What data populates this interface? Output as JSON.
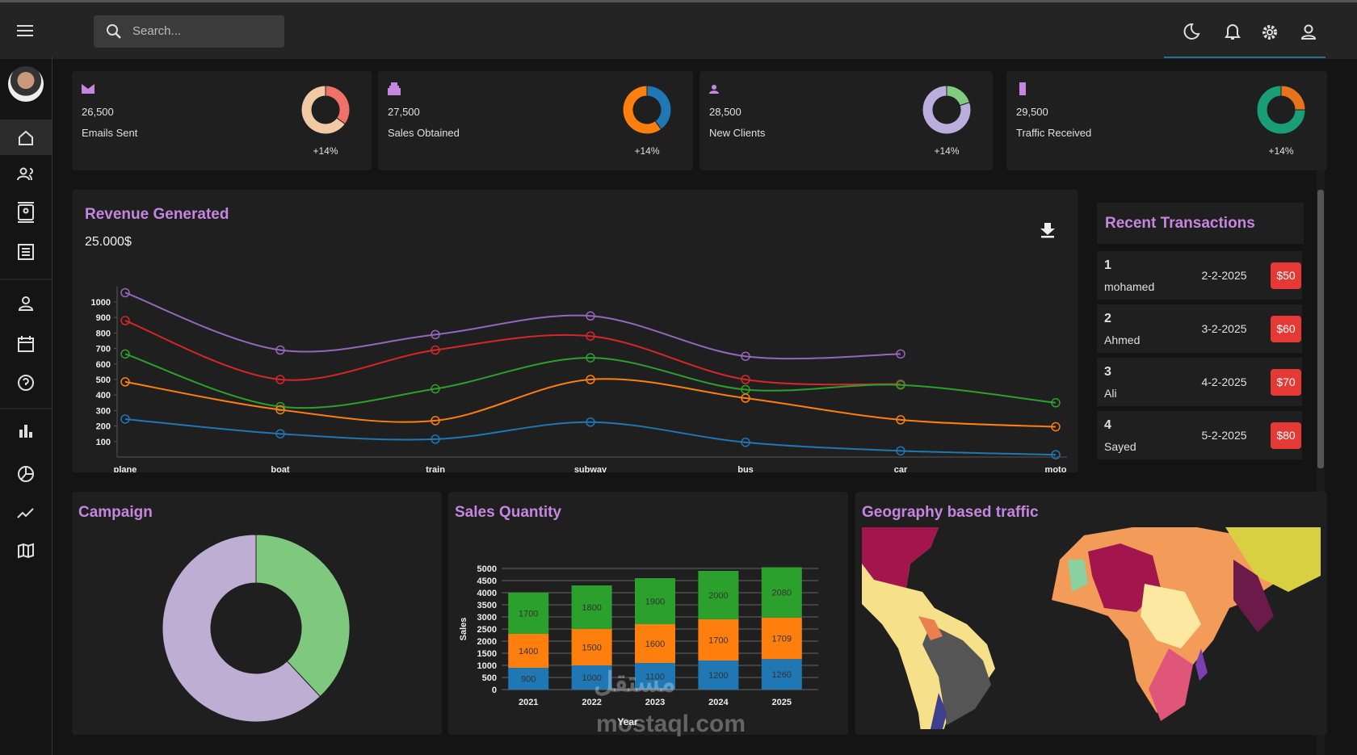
{
  "header": {
    "search_placeholder": "Search..."
  },
  "stat_cards": [
    {
      "value": "26,500",
      "label": "Emails Sent",
      "change": "+14%",
      "ring_values": [
        35,
        65
      ],
      "ring_colors": [
        "#f07167",
        "#f1c9a5"
      ]
    },
    {
      "value": "27,500",
      "label": "Sales Obtained",
      "change": "+14%",
      "ring_values": [
        40,
        60
      ],
      "ring_colors": [
        "#1f77b4",
        "#ff7f0e"
      ]
    },
    {
      "value": "28,500",
      "label": "New Clients",
      "change": "+14%",
      "ring_values": [
        20,
        80
      ],
      "ring_colors": [
        "#82ca7d",
        "#bcaedc"
      ]
    },
    {
      "value": "29,500",
      "label": "Traffic Received",
      "change": "+14%",
      "ring_values": [
        25,
        75
      ],
      "ring_colors": [
        "#e8731d",
        "#1a9e77"
      ]
    }
  ],
  "chart_data": [
    {
      "type": "line",
      "title": "Revenue Generated",
      "subtitle": "25.000$",
      "categories": [
        "plane",
        "boat",
        "train",
        "subway",
        "bus",
        "car",
        "moto"
      ],
      "series": [
        {
          "color": "#9467bd",
          "values": [
            1060,
            690,
            790,
            910,
            650,
            665,
            null
          ]
        },
        {
          "color": "#d62728",
          "values": [
            880,
            500,
            690,
            780,
            500,
            470,
            null
          ]
        },
        {
          "color": "#2ca02c",
          "values": [
            665,
            325,
            440,
            640,
            435,
            465,
            350
          ]
        },
        {
          "color": "#ff7f0e",
          "values": [
            485,
            305,
            235,
            500,
            380,
            240,
            195
          ]
        },
        {
          "color": "#1f77b4",
          "values": [
            245,
            150,
            115,
            225,
            95,
            40,
            15
          ]
        }
      ],
      "ylim": [
        0,
        1100
      ],
      "yticks": [
        100,
        200,
        300,
        400,
        500,
        600,
        700,
        800,
        900,
        1000
      ],
      "grid": false
    },
    {
      "type": "pie",
      "title": "Campaign",
      "values": [
        38,
        62
      ],
      "colors": [
        "#7fc97f",
        "#beaed4"
      ],
      "donut": true
    },
    {
      "type": "bar",
      "title": "Sales Quantity",
      "stacked": true,
      "x_label": "Year",
      "y_label": "Sales",
      "categories": [
        "2021",
        "2022",
        "2023",
        "2024",
        "2025"
      ],
      "series": [
        {
          "color": "#1f77b4",
          "values": [
            900,
            1000,
            1100,
            1200,
            1260
          ]
        },
        {
          "color": "#ff7f0e",
          "values": [
            1400,
            1500,
            1600,
            1700,
            1709
          ]
        },
        {
          "color": "#2ca02c",
          "values": [
            1700,
            1800,
            1900,
            2000,
            2080
          ]
        }
      ],
      "ylim": [
        0,
        5000
      ],
      "yticks": [
        0,
        500,
        1000,
        1500,
        2000,
        2500,
        3000,
        3500,
        4000,
        4500,
        5000
      ],
      "grid": true
    }
  ],
  "transactions": {
    "title": "Recent Transactions",
    "rows": [
      {
        "id": 1,
        "name": "mohamed",
        "date": "2-2-2025",
        "amount": "$50"
      },
      {
        "id": 2,
        "name": "Ahmed",
        "date": "3-2-2025",
        "amount": "$60"
      },
      {
        "id": 3,
        "name": "Ali",
        "date": "4-2-2025",
        "amount": "$70"
      },
      {
        "id": 4,
        "name": "Sayed",
        "date": "5-2-2025",
        "amount": "$80"
      }
    ]
  },
  "geography": {
    "title": "Geography based traffic"
  },
  "watermark": {
    "arabic": "مستقل",
    "latin": "mostaql.com"
  }
}
